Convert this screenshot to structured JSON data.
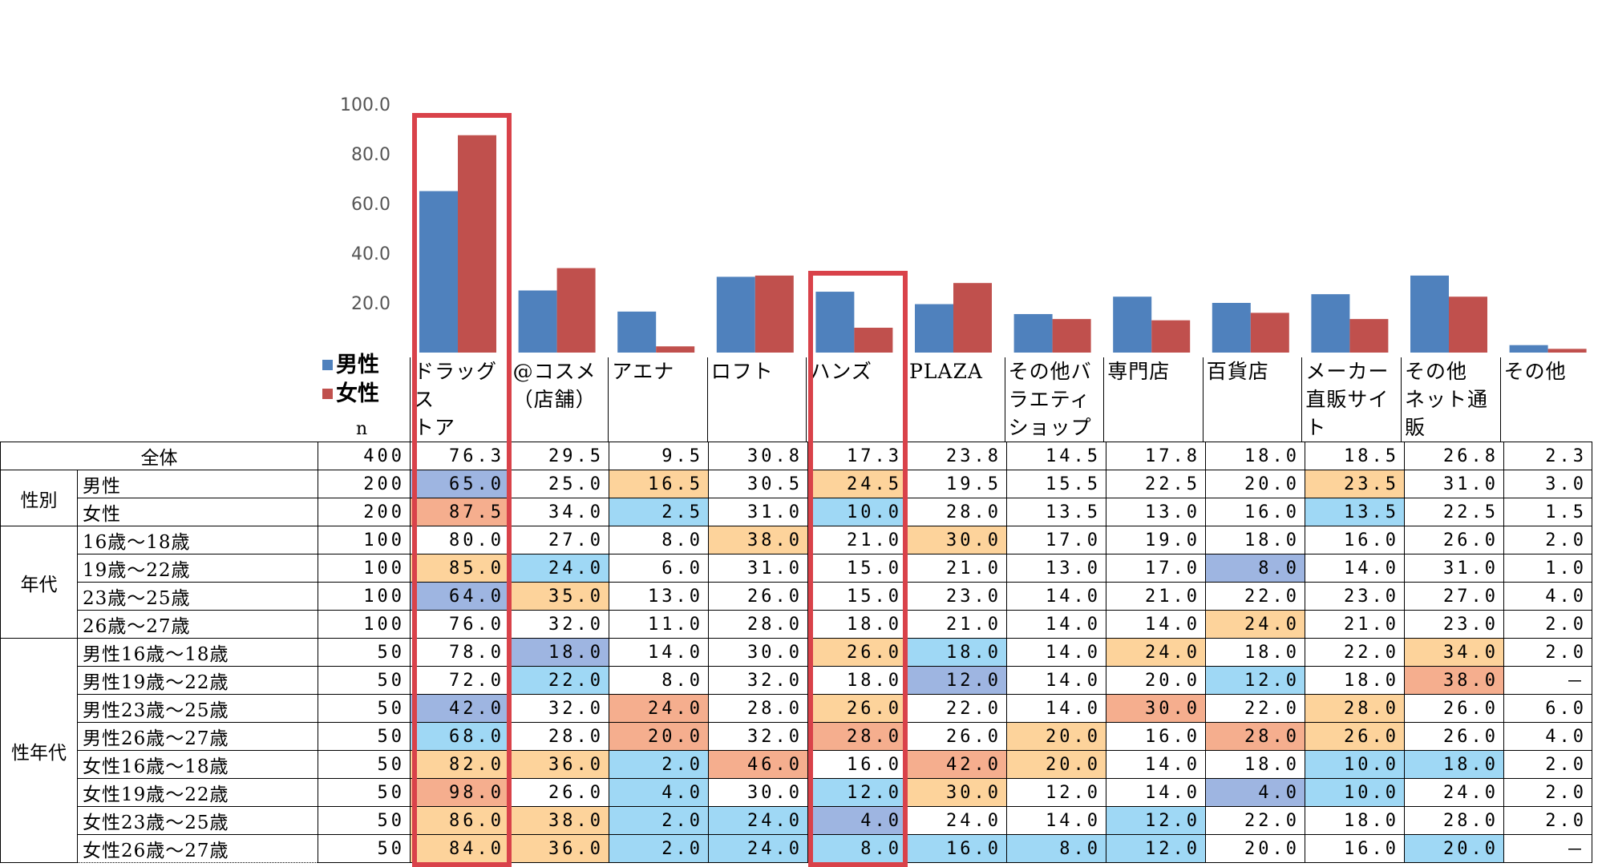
{
  "chart_data": {
    "type": "bar",
    "title": "",
    "xlabel": "",
    "ylabel": "",
    "ylim": [
      0,
      100
    ],
    "yticks": [
      "100.0",
      "80.0",
      "60.0",
      "40.0",
      "20.0"
    ],
    "categories": [
      "ドラッグストア",
      "@コスメ(店舗)",
      "アエナ",
      "ロフト",
      "ハンズ",
      "PLAZA",
      "その他バラエティショップ",
      "専門店",
      "百貨店",
      "メーカー直販サイト",
      "その他ネット通販",
      "その他"
    ],
    "series": [
      {
        "name": "男性",
        "color": "#4f81bd",
        "values": [
          65.0,
          25.0,
          16.5,
          30.5,
          24.5,
          19.5,
          15.5,
          22.5,
          20.0,
          23.5,
          31.0,
          3.0
        ]
      },
      {
        "name": "女性",
        "color": "#c0504d",
        "values": [
          87.5,
          34.0,
          2.5,
          31.0,
          10.0,
          28.0,
          13.5,
          13.0,
          16.0,
          13.5,
          22.5,
          1.5
        ]
      }
    ],
    "highlighted_categories": [
      "ドラッグストア",
      "ハンズ"
    ]
  },
  "header": {
    "n_label": "n",
    "columns": [
      "ドラッグス\nトア",
      "@コスメ\n（店舗）",
      "アエナ",
      "ロフト",
      "ハンズ",
      "PLAZA",
      "その他バ\nラエティ\nショップ",
      "専門店",
      "百貨店",
      "メーカー\n直販サイ\nト",
      "その他\nネット通販",
      "その他"
    ]
  },
  "legend": [
    {
      "label": "男性",
      "color": "#4f81bd"
    },
    {
      "label": "女性",
      "color": "#c0504d"
    }
  ],
  "colors": {
    "dark_blue": "#9eb5e1",
    "light_blue": "#9fd8f5",
    "orange": "#fdd39b",
    "salmon": "#f5ae8e",
    "highlight_box": "#d9424a"
  },
  "table": {
    "rows": [
      {
        "group": "",
        "label": "全体",
        "n": "400",
        "values": [
          "76.3",
          "29.5",
          "9.5",
          "30.8",
          "17.3",
          "23.8",
          "14.5",
          "17.8",
          "18.0",
          "18.5",
          "26.8",
          "2.3"
        ],
        "hl": [
          "",
          "",
          "",
          "",
          "",
          "",
          "",
          "",
          "",
          "",
          "",
          ""
        ]
      },
      {
        "group": "性別",
        "label": "男性",
        "n": "200",
        "values": [
          "65.0",
          "25.0",
          "16.5",
          "30.5",
          "24.5",
          "19.5",
          "15.5",
          "22.5",
          "20.0",
          "23.5",
          "31.0",
          "3.0"
        ],
        "hl": [
          "db",
          "",
          "or",
          "",
          "or",
          "",
          "",
          "",
          "",
          "or",
          "",
          ""
        ]
      },
      {
        "group": "",
        "label": "女性",
        "n": "200",
        "values": [
          "87.5",
          "34.0",
          "2.5",
          "31.0",
          "10.0",
          "28.0",
          "13.5",
          "13.0",
          "16.0",
          "13.5",
          "22.5",
          "1.5"
        ],
        "hl": [
          "sa",
          "",
          "lb",
          "",
          "lb",
          "",
          "",
          "",
          "",
          "lb",
          "",
          ""
        ]
      },
      {
        "group": "年代",
        "label": "16歳～18歳",
        "n": "100",
        "values": [
          "80.0",
          "27.0",
          "8.0",
          "38.0",
          "21.0",
          "30.0",
          "17.0",
          "19.0",
          "18.0",
          "16.0",
          "26.0",
          "2.0"
        ],
        "hl": [
          "",
          "",
          "",
          "or",
          "",
          "or",
          "",
          "",
          "",
          "",
          "",
          ""
        ]
      },
      {
        "group": "",
        "label": "19歳～22歳",
        "n": "100",
        "values": [
          "85.0",
          "24.0",
          "6.0",
          "31.0",
          "15.0",
          "21.0",
          "13.0",
          "17.0",
          "8.0",
          "14.0",
          "31.0",
          "1.0"
        ],
        "hl": [
          "or",
          "lb",
          "",
          "",
          "",
          "",
          "",
          "",
          "db",
          "",
          "",
          ""
        ]
      },
      {
        "group": "",
        "label": "23歳～25歳",
        "n": "100",
        "values": [
          "64.0",
          "35.0",
          "13.0",
          "26.0",
          "15.0",
          "23.0",
          "14.0",
          "21.0",
          "22.0",
          "23.0",
          "27.0",
          "4.0"
        ],
        "hl": [
          "db",
          "or",
          "",
          "",
          "",
          "",
          "",
          "",
          "",
          "",
          "",
          ""
        ]
      },
      {
        "group": "",
        "label": "26歳～27歳",
        "n": "100",
        "values": [
          "76.0",
          "32.0",
          "11.0",
          "28.0",
          "18.0",
          "21.0",
          "14.0",
          "14.0",
          "24.0",
          "21.0",
          "23.0",
          "2.0"
        ],
        "hl": [
          "",
          "",
          "",
          "",
          "",
          "",
          "",
          "",
          "or",
          "",
          "",
          ""
        ]
      },
      {
        "group": "性年代",
        "label": "男性16歳～18歳",
        "n": "50",
        "values": [
          "78.0",
          "18.0",
          "14.0",
          "30.0",
          "26.0",
          "18.0",
          "14.0",
          "24.0",
          "18.0",
          "22.0",
          "34.0",
          "2.0"
        ],
        "hl": [
          "",
          "db",
          "",
          "",
          "or",
          "lb",
          "",
          "or",
          "",
          "",
          "or",
          ""
        ]
      },
      {
        "group": "",
        "label": "男性19歳～22歳",
        "n": "50",
        "values": [
          "72.0",
          "22.0",
          "8.0",
          "32.0",
          "18.0",
          "12.0",
          "14.0",
          "20.0",
          "12.0",
          "18.0",
          "38.0",
          "－"
        ],
        "hl": [
          "",
          "lb",
          "",
          "",
          "",
          "db",
          "",
          "",
          "lb",
          "",
          "sa",
          ""
        ]
      },
      {
        "group": "",
        "label": "男性23歳～25歳",
        "n": "50",
        "values": [
          "42.0",
          "32.0",
          "24.0",
          "28.0",
          "26.0",
          "22.0",
          "14.0",
          "30.0",
          "22.0",
          "28.0",
          "26.0",
          "6.0"
        ],
        "hl": [
          "db",
          "",
          "sa",
          "",
          "or",
          "",
          "",
          "sa",
          "",
          "or",
          "",
          ""
        ]
      },
      {
        "group": "",
        "label": "男性26歳～27歳",
        "n": "50",
        "values": [
          "68.0",
          "28.0",
          "20.0",
          "32.0",
          "28.0",
          "26.0",
          "20.0",
          "16.0",
          "28.0",
          "26.0",
          "26.0",
          "4.0"
        ],
        "hl": [
          "lb",
          "",
          "sa",
          "",
          "sa",
          "",
          "or",
          "",
          "sa",
          "or",
          "",
          ""
        ]
      },
      {
        "group": "",
        "label": "女性16歳～18歳",
        "n": "50",
        "values": [
          "82.0",
          "36.0",
          "2.0",
          "46.0",
          "16.0",
          "42.0",
          "20.0",
          "14.0",
          "18.0",
          "10.0",
          "18.0",
          "2.0"
        ],
        "hl": [
          "or",
          "or",
          "lb",
          "sa",
          "",
          "sa",
          "or",
          "",
          "",
          "lb",
          "lb",
          ""
        ]
      },
      {
        "group": "",
        "label": "女性19歳～22歳",
        "n": "50",
        "values": [
          "98.0",
          "26.0",
          "4.0",
          "30.0",
          "12.0",
          "30.0",
          "12.0",
          "14.0",
          "4.0",
          "10.0",
          "24.0",
          "2.0"
        ],
        "hl": [
          "sa",
          "",
          "lb",
          "",
          "lb",
          "or",
          "",
          "",
          "db",
          "lb",
          "",
          ""
        ]
      },
      {
        "group": "",
        "label": "女性23歳～25歳",
        "n": "50",
        "values": [
          "86.0",
          "38.0",
          "2.0",
          "24.0",
          "4.0",
          "24.0",
          "14.0",
          "12.0",
          "22.0",
          "18.0",
          "28.0",
          "2.0"
        ],
        "hl": [
          "or",
          "or",
          "lb",
          "lb",
          "db",
          "",
          "",
          "lb",
          "",
          "",
          "",
          ""
        ]
      },
      {
        "group": "",
        "label": "女性26歳～27歳",
        "n": "50",
        "values": [
          "84.0",
          "36.0",
          "2.0",
          "24.0",
          "8.0",
          "16.0",
          "8.0",
          "12.0",
          "20.0",
          "16.0",
          "20.0",
          "－"
        ],
        "hl": [
          "or",
          "or",
          "lb",
          "lb",
          "lb",
          "lb",
          "lb",
          "lb",
          "",
          "",
          "lb",
          ""
        ]
      }
    ]
  }
}
